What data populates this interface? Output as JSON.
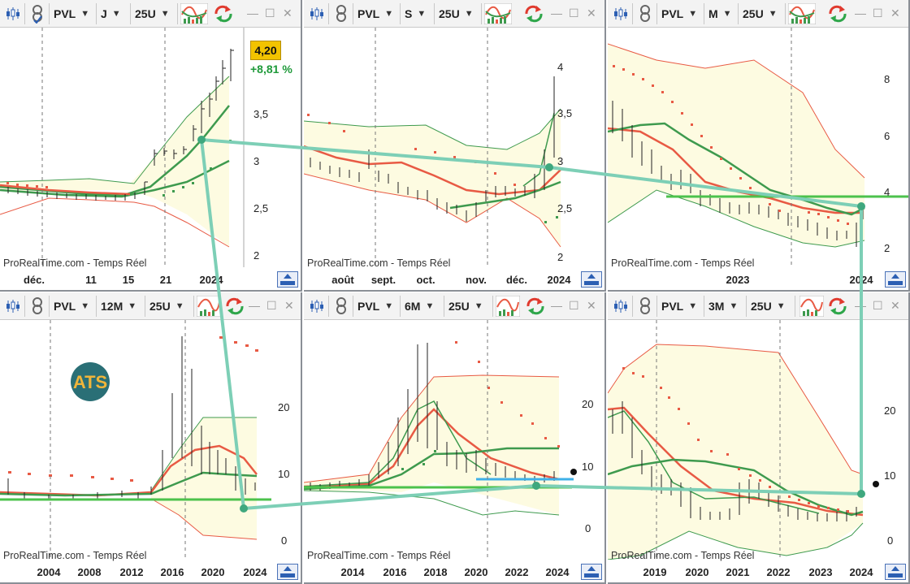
{
  "source_text": "ProRealTime.com - Temps Réel",
  "panels": [
    {
      "symbol": "PVL",
      "period": "J",
      "units": "25U",
      "yticks": [
        "3,5",
        "3",
        "2,5",
        "2"
      ],
      "xlabels": [
        "déc.",
        "11",
        "15",
        "21",
        "2024"
      ],
      "price_label": "4,20",
      "change_label": "+8,81 %"
    },
    {
      "symbol": "PVL",
      "period": "S",
      "units": "25U",
      "yticks": [
        "4",
        "3,5",
        "3",
        "2,5",
        "2"
      ],
      "xlabels": [
        "août",
        "sept.",
        "oct.",
        "nov.",
        "déc.",
        "2024"
      ]
    },
    {
      "symbol": "PVL",
      "period": "M",
      "units": "25U",
      "yticks": [
        "8",
        "6",
        "4",
        "2"
      ],
      "xlabels": [
        "2023",
        "2024"
      ]
    },
    {
      "symbol": "PVL",
      "period": "12M",
      "units": "25U",
      "yticks": [
        "20",
        "10",
        "0"
      ],
      "xlabels": [
        "2004",
        "2008",
        "2012",
        "2016",
        "2020",
        "2024"
      ],
      "logo_text": "ATS"
    },
    {
      "symbol": "PVL",
      "period": "6M",
      "units": "25U",
      "yticks": [
        "20",
        "10",
        "0"
      ],
      "xlabels": [
        "2014",
        "2016",
        "2018",
        "2020",
        "2022",
        "2024"
      ]
    },
    {
      "symbol": "PVL",
      "period": "3M",
      "units": "25U",
      "yticks": [
        "20",
        "10",
        "0"
      ],
      "xlabels": [
        "2019",
        "2020",
        "2021",
        "2022",
        "2023",
        "2024"
      ]
    }
  ],
  "colors": {
    "bollinger_fill": "#fdfbe1",
    "bollinger_band": "#e85a44",
    "moving_avg_fast": "#e85a44",
    "moving_avg_slow": "#3e9a4e",
    "sar_dots": "#e85a44",
    "support_line": "#4cc24c",
    "connector_line": "#7dcfb6",
    "price_badge": "#f2c300"
  }
}
